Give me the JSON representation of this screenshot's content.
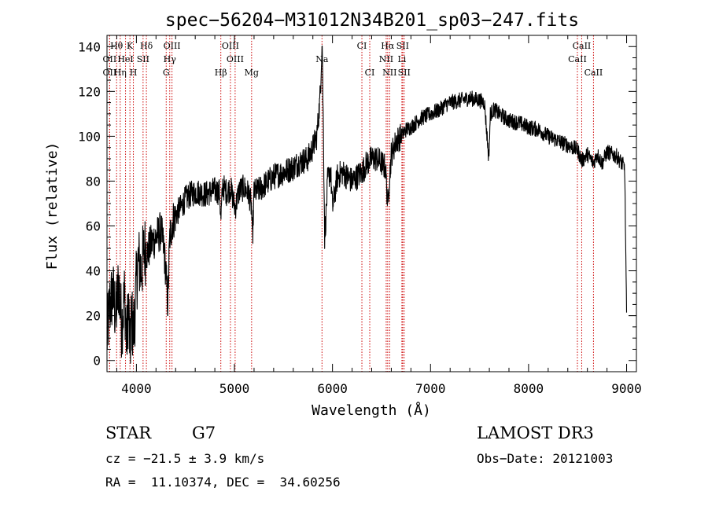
{
  "chart_data": {
    "type": "line",
    "title": "spec−56204−M31012N34B201_sp03−247.fits",
    "xlabel": "Wavelength (Å)",
    "ylabel": "Flux (relative)",
    "xlim": [
      3700,
      9100
    ],
    "ylim": [
      -5,
      145
    ],
    "xticks": [
      4000,
      5000,
      6000,
      7000,
      8000,
      9000
    ],
    "yticks": [
      0,
      20,
      40,
      60,
      80,
      100,
      120,
      140
    ],
    "grid": false,
    "series": [
      {
        "name": "flux",
        "x": [
          3700,
          3730,
          3760,
          3790,
          3820,
          3850,
          3880,
          3900,
          3920,
          3935,
          3950,
          3968,
          3985,
          4000,
          4020,
          4050,
          4080,
          4110,
          4150,
          4200,
          4250,
          4280,
          4300,
          4320,
          4340,
          4370,
          4400,
          4450,
          4500,
          4550,
          4600,
          4650,
          4700,
          4750,
          4800,
          4850,
          4861,
          4880,
          4920,
          4960,
          5007,
          5050,
          5100,
          5150,
          5175,
          5183,
          5200,
          5250,
          5300,
          5350,
          5400,
          5450,
          5500,
          5550,
          5600,
          5650,
          5700,
          5750,
          5800,
          5840,
          5870,
          5880,
          5890,
          5896,
          5900,
          5910,
          5920,
          5935,
          5950,
          5980,
          6000,
          6050,
          6100,
          6150,
          6200,
          6250,
          6300,
          6350,
          6400,
          6450,
          6500,
          6540,
          6563,
          6580,
          6600,
          6650,
          6700,
          6750,
          6800,
          6850,
          6900,
          6950,
          7000,
          7050,
          7100,
          7150,
          7200,
          7300,
          7400,
          7500,
          7550,
          7594,
          7610,
          7650,
          7700,
          7800,
          7900,
          8000,
          8100,
          8200,
          8300,
          8400,
          8500,
          8542,
          8600,
          8662,
          8700,
          8750,
          8800,
          8850,
          8900,
          8950,
          8980,
          9000
        ],
        "values": [
          10,
          25,
          30,
          20,
          35,
          15,
          30,
          8,
          25,
          3,
          20,
          12,
          22,
          35,
          45,
          40,
          50,
          48,
          52,
          55,
          58,
          50,
          40,
          25,
          55,
          62,
          65,
          68,
          72,
          74,
          75,
          75,
          74,
          75,
          76,
          75,
          62,
          78,
          75,
          77,
          68,
          76,
          77,
          74,
          68,
          52,
          75,
          76,
          78,
          80,
          82,
          83,
          84,
          85,
          86,
          88,
          89,
          90,
          95,
          100,
          115,
          125,
          138,
          142,
          125,
          95,
          55,
          65,
          80,
          85,
          68,
          82,
          84,
          82,
          80,
          82,
          84,
          88,
          90,
          90,
          88,
          86,
          70,
          80,
          92,
          98,
          100,
          103,
          104,
          106,
          108,
          109,
          110,
          111,
          112,
          114,
          115,
          116,
          117,
          116,
          115,
          90,
          110,
          112,
          110,
          107,
          106,
          104,
          103,
          100,
          98,
          96,
          94,
          89,
          92,
          88,
          92,
          88,
          93,
          92,
          91,
          88,
          86,
          20
        ]
      }
    ],
    "lines": [
      {
        "label": "Hθ",
        "x": 3798,
        "row": 1
      },
      {
        "label": "K",
        "x": 3934,
        "row": 1
      },
      {
        "label": "Hδ",
        "x": 4102,
        "row": 1
      },
      {
        "label": "OIII",
        "x": 4363,
        "row": 1
      },
      {
        "label": "OIII",
        "x": 4959,
        "row": 1
      },
      {
        "label": "CI",
        "x": 6300,
        "row": 1
      },
      {
        "label": "Hα",
        "x": 6563,
        "row": 1
      },
      {
        "label": "SII",
        "x": 6716,
        "row": 1
      },
      {
        "label": "CaII",
        "x": 8542,
        "row": 1
      },
      {
        "label": "OII",
        "x": 3727,
        "row": 2
      },
      {
        "label": "HeI",
        "x": 3889,
        "row": 2
      },
      {
        "label": "SII",
        "x": 4068,
        "row": 2
      },
      {
        "label": "Hγ",
        "x": 4340,
        "row": 2
      },
      {
        "label": "OIII",
        "x": 5007,
        "row": 2
      },
      {
        "label": "Na",
        "x": 5893,
        "row": 2
      },
      {
        "label": "NII",
        "x": 6548,
        "row": 2
      },
      {
        "label": "Li",
        "x": 6708,
        "row": 2
      },
      {
        "label": "CaII",
        "x": 8498,
        "row": 2
      },
      {
        "label": "OII",
        "x": 3727,
        "row": 3
      },
      {
        "label": "Hη",
        "x": 3835,
        "row": 3
      },
      {
        "label": "H",
        "x": 3969,
        "row": 3
      },
      {
        "label": "G",
        "x": 4304,
        "row": 3
      },
      {
        "label": "Hβ",
        "x": 4861,
        "row": 3
      },
      {
        "label": "Mg",
        "x": 5175,
        "row": 3
      },
      {
        "label": "CI",
        "x": 6380,
        "row": 3
      },
      {
        "label": "NII",
        "x": 6583,
        "row": 3
      },
      {
        "label": "SII",
        "x": 6731,
        "row": 3
      },
      {
        "label": "CaII",
        "x": 8662,
        "row": 3
      }
    ]
  },
  "info": {
    "object_type": "STAR",
    "subclass": "G7",
    "survey": "LAMOST DR3",
    "cz": "cz = −21.5 ± 3.9 km/s",
    "obs_date": "Obs−Date: 20121003",
    "coords": "RA =  11.10374, DEC =  34.60256"
  },
  "colors": {
    "spectrum": "#000000",
    "line_marker": "#cc0000",
    "axis": "#000000",
    "background": "#ffffff"
  }
}
